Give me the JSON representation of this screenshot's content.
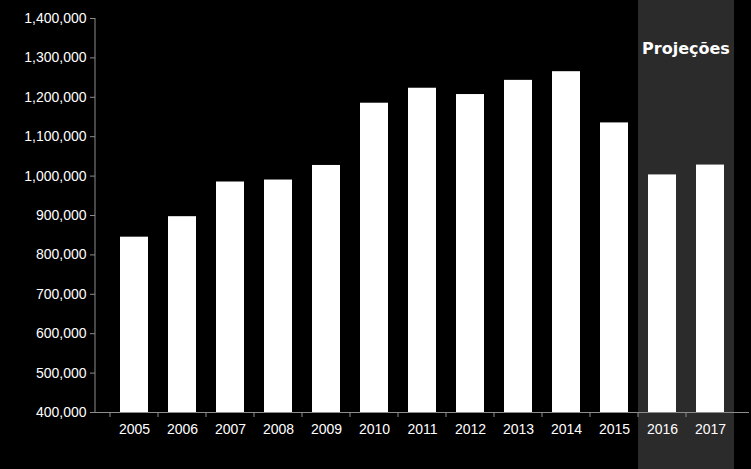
{
  "chart_data": {
    "type": "bar",
    "categories": [
      "2005",
      "2006",
      "2007",
      "2008",
      "2009",
      "2010",
      "2011",
      "2012",
      "2013",
      "2014",
      "2015",
      "2016",
      "2017"
    ],
    "values": [
      845000,
      897000,
      985000,
      990000,
      1027000,
      1185000,
      1223000,
      1207000,
      1243000,
      1265000,
      1135000,
      1003000,
      1028000
    ],
    "color": "#ffffff",
    "ylim": [
      400000,
      1400000
    ],
    "yticks": [
      {
        "value": 400000,
        "label": "400,000"
      },
      {
        "value": 500000,
        "label": "500,000"
      },
      {
        "value": 600000,
        "label": "600,000"
      },
      {
        "value": 700000,
        "label": "700,000"
      },
      {
        "value": 800000,
        "label": "800,000"
      },
      {
        "value": 900000,
        "label": "900,000"
      },
      {
        "value": 1000000,
        "label": "1,000,000"
      },
      {
        "value": 1100000,
        "label": "1,100,000"
      },
      {
        "value": 1200000,
        "label": "1,200,000"
      },
      {
        "value": 1300000,
        "label": "1,300,000"
      },
      {
        "value": 1400000,
        "label": "1,400,000"
      }
    ],
    "grid": false,
    "annotations": [
      {
        "text": "Projeções",
        "from": "2016",
        "to": "2017"
      }
    ]
  }
}
